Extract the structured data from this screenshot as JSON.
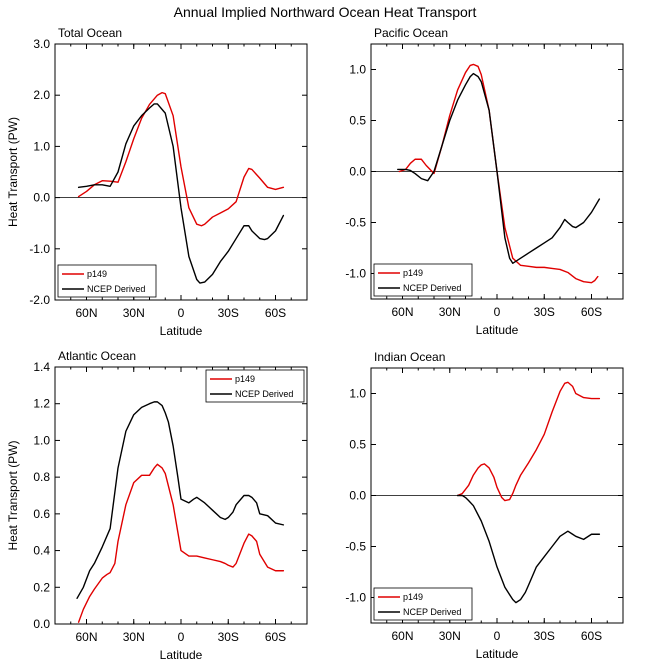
{
  "figure_title": "Annual Implied Northward Ocean Heat Transport",
  "colors": {
    "p149": "#e00000",
    "ncep": "#000000"
  },
  "chart_data": [
    {
      "type": "line",
      "title": "Total Ocean",
      "xlabel": "Latitude",
      "ylabel": "Heat Transport (PW)",
      "xlim": [
        80,
        -80
      ],
      "ylim": [
        -2.0,
        3.0
      ],
      "xticks": [
        60,
        30,
        0,
        -30,
        -60
      ],
      "xtick_labels": [
        "60N",
        "30N",
        "0",
        "30S",
        "60S"
      ],
      "yticks": [
        -2.0,
        -1.0,
        0.0,
        1.0,
        2.0,
        3.0
      ],
      "ytick_labels": [
        "-2.0",
        "-1.0",
        "0.0",
        "1.0",
        "2.0",
        "3.0"
      ],
      "zero_line": true,
      "legend": {
        "position": "bottom-left",
        "entries": [
          "p149",
          "NCEP Derived"
        ]
      },
      "series": [
        {
          "name": "p149",
          "color": "#e00000",
          "x": [
            65,
            60,
            55,
            50,
            45,
            40,
            35,
            30,
            25,
            20,
            15,
            12,
            10,
            5,
            0,
            -5,
            -10,
            -13,
            -15,
            -20,
            -25,
            -30,
            -35,
            -40,
            -43,
            -45,
            -50,
            -55,
            -60,
            -65
          ],
          "y": [
            0.02,
            0.12,
            0.25,
            0.33,
            0.32,
            0.3,
            0.7,
            1.15,
            1.55,
            1.82,
            2.0,
            2.05,
            2.03,
            1.6,
            0.6,
            -0.2,
            -0.52,
            -0.55,
            -0.52,
            -0.38,
            -0.3,
            -0.22,
            -0.08,
            0.4,
            0.57,
            0.55,
            0.38,
            0.2,
            0.16,
            0.2
          ]
        },
        {
          "name": "NCEP Derived",
          "color": "#000000",
          "x": [
            65,
            60,
            55,
            50,
            45,
            40,
            35,
            30,
            25,
            20,
            17,
            15,
            10,
            5,
            0,
            -5,
            -10,
            -12,
            -15,
            -20,
            -25,
            -30,
            -35,
            -40,
            -43,
            -45,
            -50,
            -53,
            -55,
            -60,
            -65
          ],
          "y": [
            0.2,
            0.22,
            0.25,
            0.25,
            0.22,
            0.5,
            1.05,
            1.4,
            1.6,
            1.75,
            1.83,
            1.83,
            1.65,
            1.0,
            -0.2,
            -1.15,
            -1.6,
            -1.67,
            -1.65,
            -1.5,
            -1.25,
            -1.05,
            -0.8,
            -0.55,
            -0.55,
            -0.65,
            -0.8,
            -0.82,
            -0.8,
            -0.65,
            -0.35
          ]
        }
      ]
    },
    {
      "type": "line",
      "title": "Pacific Ocean",
      "xlabel": "Latitude",
      "ylabel": "",
      "xlim": [
        80,
        -80
      ],
      "ylim": [
        -1.25,
        1.25
      ],
      "xticks": [
        60,
        30,
        0,
        -30,
        -60
      ],
      "xtick_labels": [
        "60N",
        "30N",
        "0",
        "30S",
        "60S"
      ],
      "yticks": [
        -1.0,
        -0.5,
        0.0,
        0.5,
        1.0
      ],
      "ytick_labels": [
        "-1.0",
        "-0.5",
        "0.0",
        "0.5",
        "1.0"
      ],
      "zero_line": true,
      "legend": {
        "position": "bottom-left",
        "entries": [
          "p149",
          "NCEP Derived"
        ]
      },
      "series": [
        {
          "name": "p149",
          "color": "#e00000",
          "x": [
            62,
            58,
            55,
            52,
            48,
            45,
            40,
            35,
            30,
            25,
            20,
            17,
            15,
            12,
            10,
            5,
            0,
            -5,
            -10,
            -15,
            -20,
            -25,
            -30,
            -35,
            -40,
            -45,
            -50,
            -55,
            -60,
            -62,
            -64
          ],
          "y": [
            0.0,
            0.02,
            0.08,
            0.12,
            0.12,
            0.06,
            -0.02,
            0.25,
            0.55,
            0.8,
            0.97,
            1.04,
            1.05,
            1.03,
            0.95,
            0.6,
            0.0,
            -0.55,
            -0.85,
            -0.92,
            -0.93,
            -0.94,
            -0.94,
            -0.95,
            -0.96,
            -0.99,
            -1.05,
            -1.08,
            -1.09,
            -1.07,
            -1.03
          ]
        },
        {
          "name": "NCEP Derived",
          "color": "#000000",
          "x": [
            63,
            58,
            55,
            52,
            48,
            44,
            40,
            35,
            30,
            25,
            20,
            17,
            15,
            12,
            10,
            5,
            0,
            -5,
            -8,
            -10,
            -15,
            -20,
            -25,
            -30,
            -35,
            -40,
            -43,
            -45,
            -48,
            -50,
            -55,
            -60,
            -65
          ],
          "y": [
            0.02,
            0.02,
            0.01,
            -0.02,
            -0.07,
            -0.09,
            0.0,
            0.25,
            0.5,
            0.7,
            0.85,
            0.93,
            0.96,
            0.93,
            0.88,
            0.6,
            0.0,
            -0.65,
            -0.85,
            -0.9,
            -0.85,
            -0.8,
            -0.75,
            -0.7,
            -0.65,
            -0.55,
            -0.47,
            -0.5,
            -0.54,
            -0.55,
            -0.5,
            -0.4,
            -0.27
          ]
        }
      ]
    },
    {
      "type": "line",
      "title": "Atlantic Ocean",
      "xlabel": "Latitude",
      "ylabel": "Heat Transport (PW)",
      "xlim": [
        80,
        -80
      ],
      "ylim": [
        0.0,
        1.4
      ],
      "xticks": [
        60,
        30,
        0,
        -30,
        -60
      ],
      "xtick_labels": [
        "60N",
        "30N",
        "0",
        "30S",
        "60S"
      ],
      "yticks": [
        0.0,
        0.2,
        0.4,
        0.6,
        0.8,
        1.0,
        1.2,
        1.4
      ],
      "ytick_labels": [
        "0.0",
        "0.2",
        "0.4",
        "0.6",
        "0.8",
        "1.0",
        "1.2",
        "1.4"
      ],
      "zero_line": false,
      "legend": {
        "position": "top-right",
        "entries": [
          "p149",
          "NCEP Derived"
        ]
      },
      "series": [
        {
          "name": "p149",
          "color": "#e00000",
          "x": [
            65,
            62,
            58,
            55,
            50,
            47,
            45,
            42,
            40,
            35,
            30,
            25,
            20,
            17,
            15,
            12,
            10,
            5,
            2,
            0,
            -5,
            -10,
            -15,
            -20,
            -25,
            -28,
            -30,
            -33,
            -35,
            -40,
            -43,
            -45,
            -48,
            -50,
            -55,
            -60,
            -65
          ],
          "y": [
            0.01,
            0.08,
            0.15,
            0.19,
            0.25,
            0.27,
            0.28,
            0.33,
            0.45,
            0.65,
            0.77,
            0.81,
            0.81,
            0.85,
            0.87,
            0.85,
            0.82,
            0.65,
            0.5,
            0.4,
            0.37,
            0.37,
            0.36,
            0.35,
            0.34,
            0.33,
            0.32,
            0.31,
            0.33,
            0.44,
            0.49,
            0.48,
            0.45,
            0.38,
            0.31,
            0.29,
            0.29
          ]
        },
        {
          "name": "NCEP Derived",
          "color": "#000000",
          "x": [
            66,
            62,
            58,
            55,
            50,
            45,
            40,
            35,
            30,
            25,
            20,
            17,
            15,
            12,
            10,
            8,
            5,
            2,
            0,
            -5,
            -8,
            -10,
            -15,
            -20,
            -25,
            -28,
            -30,
            -33,
            -35,
            -40,
            -43,
            -45,
            -48,
            -50,
            -55,
            -60,
            -65
          ],
          "y": [
            0.14,
            0.2,
            0.29,
            0.33,
            0.42,
            0.52,
            0.85,
            1.05,
            1.14,
            1.18,
            1.2,
            1.21,
            1.21,
            1.19,
            1.15,
            1.1,
            0.97,
            0.8,
            0.68,
            0.66,
            0.68,
            0.69,
            0.66,
            0.62,
            0.58,
            0.57,
            0.58,
            0.61,
            0.65,
            0.7,
            0.7,
            0.69,
            0.66,
            0.6,
            0.59,
            0.55,
            0.54
          ]
        }
      ]
    },
    {
      "type": "line",
      "title": "Indian Ocean",
      "xlabel": "Latitude",
      "ylabel": "",
      "xlim": [
        80,
        -80
      ],
      "ylim": [
        -1.25,
        1.25
      ],
      "xticks": [
        60,
        30,
        0,
        -30,
        -60
      ],
      "xtick_labels": [
        "60N",
        "30N",
        "0",
        "30S",
        "60S"
      ],
      "yticks": [
        -1.0,
        -0.5,
        0.0,
        0.5,
        1.0
      ],
      "ytick_labels": [
        "-1.0",
        "-0.5",
        "0.0",
        "0.5",
        "1.0"
      ],
      "zero_line": true,
      "legend": {
        "position": "bottom-left",
        "entries": [
          "p149",
          "NCEP Derived"
        ]
      },
      "series": [
        {
          "name": "p149",
          "color": "#e00000",
          "x": [
            25,
            22,
            18,
            15,
            12,
            10,
            8,
            5,
            2,
            0,
            -3,
            -5,
            -8,
            -10,
            -12,
            -15,
            -20,
            -25,
            -30,
            -35,
            -40,
            -43,
            -45,
            -48,
            -50,
            -55,
            -60,
            -65
          ],
          "y": [
            0.0,
            0.02,
            0.1,
            0.2,
            0.27,
            0.3,
            0.31,
            0.27,
            0.18,
            0.08,
            -0.02,
            -0.05,
            -0.04,
            0.02,
            0.1,
            0.2,
            0.32,
            0.45,
            0.6,
            0.82,
            1.02,
            1.1,
            1.11,
            1.07,
            1.0,
            0.96,
            0.95,
            0.95
          ]
        },
        {
          "name": "NCEP Derived",
          "color": "#000000",
          "x": [
            25,
            22,
            20,
            18,
            15,
            10,
            5,
            0,
            -5,
            -10,
            -12,
            -15,
            -18,
            -20,
            -25,
            -30,
            -35,
            -40,
            -45,
            -48,
            -50,
            -55,
            -60,
            -65
          ],
          "y": [
            0.0,
            0.0,
            -0.02,
            -0.05,
            -0.1,
            -0.25,
            -0.45,
            -0.7,
            -0.9,
            -1.02,
            -1.05,
            -1.02,
            -0.95,
            -0.88,
            -0.7,
            -0.6,
            -0.5,
            -0.4,
            -0.35,
            -0.38,
            -0.4,
            -0.43,
            -0.38,
            -0.38
          ]
        }
      ]
    }
  ]
}
